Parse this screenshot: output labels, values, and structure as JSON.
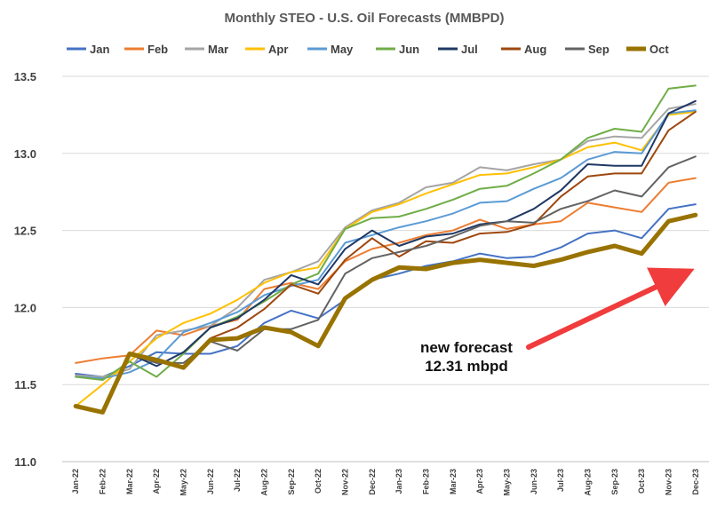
{
  "chart_data": {
    "type": "line",
    "title": "Monthly STEO - U.S. Oil Forecasts (MMBPD)",
    "xlabel": "",
    "ylabel": "",
    "ylim": [
      11.0,
      13.5
    ],
    "yticks": [
      "11.0",
      "11.5",
      "12.0",
      "12.5",
      "13.0",
      "13.5"
    ],
    "ytick_values": [
      11.0,
      11.5,
      12.0,
      12.5,
      13.0,
      13.5
    ],
    "grid": true,
    "legend_position": "top",
    "categories": [
      "Jan-22",
      "Feb-22",
      "Mar-22",
      "Apr-22",
      "May-22",
      "Jun-22",
      "Jul-22",
      "Aug-22",
      "Sep-22",
      "Oct-22",
      "Nov-22",
      "Dec-22",
      "Jan-23",
      "Feb-23",
      "Mar-23",
      "Apr-23",
      "May-23",
      "Jun-23",
      "Jul-23",
      "Aug-23",
      "Sep-23",
      "Oct-23",
      "Nov-23",
      "Dec-23"
    ],
    "series": [
      {
        "name": "Jan",
        "color": "#4472c4",
        "values": [
          11.57,
          11.55,
          11.62,
          11.71,
          11.7,
          11.7,
          11.75,
          11.9,
          11.98,
          11.93,
          12.05,
          12.18,
          12.22,
          12.27,
          12.3,
          12.35,
          12.32,
          12.33,
          12.39,
          12.48,
          12.5,
          12.45,
          12.64,
          12.67
        ]
      },
      {
        "name": "Feb",
        "color": "#ed7d31",
        "values": [
          11.64,
          11.67,
          11.69,
          11.85,
          11.82,
          11.88,
          11.92,
          12.12,
          12.16,
          12.12,
          12.3,
          12.38,
          12.42,
          12.47,
          12.5,
          12.57,
          12.51,
          12.54,
          12.56,
          12.68,
          12.65,
          12.62,
          12.81,
          12.84
        ]
      },
      {
        "name": "Mar",
        "color": "#a5a5a5",
        "values": [
          11.56,
          11.55,
          11.6,
          11.82,
          11.85,
          11.88,
          12.0,
          12.18,
          12.23,
          12.3,
          12.52,
          12.63,
          12.68,
          12.78,
          12.81,
          12.91,
          12.89,
          12.93,
          12.96,
          13.08,
          13.11,
          13.1,
          13.29,
          13.32
        ]
      },
      {
        "name": "Apr",
        "color": "#ffc000",
        "values": [
          11.36,
          11.5,
          11.65,
          11.8,
          11.9,
          11.96,
          12.05,
          12.16,
          12.23,
          12.26,
          12.51,
          12.62,
          12.67,
          12.74,
          12.8,
          12.86,
          12.87,
          12.91,
          12.96,
          13.04,
          13.07,
          13.02,
          13.25,
          13.27
        ]
      },
      {
        "name": "May",
        "color": "#5b9bd5",
        "values": [
          11.55,
          11.54,
          11.58,
          11.66,
          11.84,
          11.9,
          11.97,
          12.08,
          12.14,
          12.18,
          12.42,
          12.47,
          12.52,
          12.56,
          12.61,
          12.68,
          12.69,
          12.77,
          12.84,
          12.96,
          13.01,
          13.0,
          13.26,
          13.28
        ]
      },
      {
        "name": "Jun",
        "color": "#70ad47",
        "values": [
          11.55,
          11.53,
          11.65,
          11.55,
          11.7,
          11.87,
          11.94,
          12.04,
          12.15,
          12.22,
          12.51,
          12.58,
          12.59,
          12.64,
          12.7,
          12.77,
          12.79,
          12.87,
          12.96,
          13.1,
          13.16,
          13.14,
          13.42,
          13.44
        ]
      },
      {
        "name": "Jul",
        "color": "#1f3864",
        "values": [
          11.36,
          11.32,
          11.7,
          11.62,
          11.71,
          11.87,
          11.93,
          12.05,
          12.21,
          12.15,
          12.38,
          12.5,
          12.4,
          12.46,
          12.48,
          12.54,
          12.56,
          12.64,
          12.76,
          12.93,
          12.92,
          12.92,
          13.26,
          13.34
        ]
      },
      {
        "name": "Aug",
        "color": "#9e480e",
        "values": [
          11.36,
          11.32,
          11.69,
          11.65,
          11.62,
          11.8,
          11.87,
          11.99,
          12.15,
          12.09,
          12.31,
          12.45,
          12.33,
          12.43,
          12.42,
          12.48,
          12.49,
          12.54,
          12.72,
          12.85,
          12.87,
          12.87,
          13.15,
          13.27
        ]
      },
      {
        "name": "Sep",
        "color": "#636363",
        "values": [
          11.36,
          11.32,
          11.7,
          11.64,
          11.64,
          11.78,
          11.72,
          11.86,
          11.86,
          11.92,
          12.22,
          12.32,
          12.36,
          12.4,
          12.46,
          12.53,
          12.56,
          12.55,
          12.64,
          12.69,
          12.76,
          12.72,
          12.91,
          12.98
        ]
      },
      {
        "name": "Oct",
        "color": "#997300",
        "values": [
          11.36,
          11.32,
          11.7,
          11.66,
          11.61,
          11.79,
          11.8,
          11.87,
          11.84,
          11.75,
          12.06,
          12.18,
          12.26,
          12.25,
          12.29,
          12.31,
          12.29,
          12.27,
          12.31,
          12.36,
          12.4,
          12.35,
          12.56,
          12.6
        ]
      }
    ],
    "annotation": {
      "line1": "new forecast",
      "line2": "12.31 mbpd",
      "arrow_color": "#f03c3c"
    }
  }
}
